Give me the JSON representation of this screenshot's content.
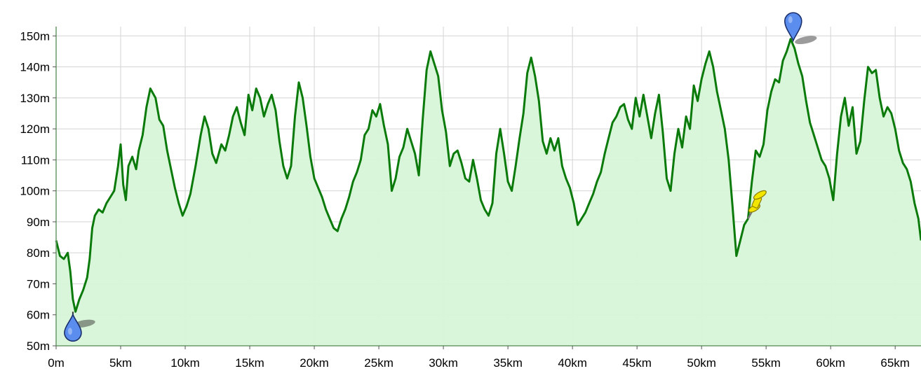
{
  "chart_data": {
    "type": "area",
    "xlabel": "",
    "ylabel": "",
    "xlim": [
      0,
      67
    ],
    "ylim": [
      50,
      153
    ],
    "grid": true,
    "x_ticks": [
      {
        "value": 0,
        "label": "0m"
      },
      {
        "value": 5,
        "label": "5km"
      },
      {
        "value": 10,
        "label": "10km"
      },
      {
        "value": 15,
        "label": "15km"
      },
      {
        "value": 20,
        "label": "20km"
      },
      {
        "value": 25,
        "label": "25km"
      },
      {
        "value": 30,
        "label": "30km"
      },
      {
        "value": 35,
        "label": "35km"
      },
      {
        "value": 40,
        "label": "40km"
      },
      {
        "value": 45,
        "label": "45km"
      },
      {
        "value": 50,
        "label": "50km"
      },
      {
        "value": 55,
        "label": "55km"
      },
      {
        "value": 60,
        "label": "60km"
      },
      {
        "value": 65,
        "label": "65km"
      }
    ],
    "y_ticks": [
      {
        "value": 50,
        "label": "50m"
      },
      {
        "value": 60,
        "label": "60m"
      },
      {
        "value": 70,
        "label": "70m"
      },
      {
        "value": 80,
        "label": "80m"
      },
      {
        "value": 90,
        "label": "90m"
      },
      {
        "value": 100,
        "label": "100m"
      },
      {
        "value": 110,
        "label": "110m"
      },
      {
        "value": 120,
        "label": "120m"
      },
      {
        "value": 130,
        "label": "130m"
      },
      {
        "value": 140,
        "label": "140m"
      },
      {
        "value": 150,
        "label": "150m"
      }
    ],
    "series": [
      {
        "color": "#0a7a0a",
        "fill": "#d8f5d8",
        "points": [
          [
            0,
            84
          ],
          [
            0.3,
            79
          ],
          [
            0.6,
            78
          ],
          [
            0.9,
            80
          ],
          [
            1.1,
            74
          ],
          [
            1.3,
            65
          ],
          [
            1.5,
            61
          ],
          [
            1.8,
            65
          ],
          [
            2.1,
            68
          ],
          [
            2.4,
            72
          ],
          [
            2.6,
            78
          ],
          [
            2.8,
            88
          ],
          [
            3.0,
            92
          ],
          [
            3.3,
            94
          ],
          [
            3.6,
            93
          ],
          [
            3.9,
            96
          ],
          [
            4.2,
            98
          ],
          [
            4.5,
            100
          ],
          [
            4.8,
            108
          ],
          [
            5.0,
            115
          ],
          [
            5.2,
            102
          ],
          [
            5.4,
            97
          ],
          [
            5.6,
            108
          ],
          [
            5.9,
            111
          ],
          [
            6.2,
            107
          ],
          [
            6.4,
            113
          ],
          [
            6.7,
            118
          ],
          [
            7.0,
            127
          ],
          [
            7.3,
            133
          ],
          [
            7.7,
            130
          ],
          [
            8.0,
            123
          ],
          [
            8.3,
            121
          ],
          [
            8.6,
            113
          ],
          [
            8.9,
            107
          ],
          [
            9.2,
            101
          ],
          [
            9.5,
            96
          ],
          [
            9.8,
            92
          ],
          [
            10.1,
            95
          ],
          [
            10.4,
            99
          ],
          [
            10.8,
            108
          ],
          [
            11.2,
            118
          ],
          [
            11.5,
            124
          ],
          [
            11.8,
            120
          ],
          [
            12.1,
            112
          ],
          [
            12.4,
            109
          ],
          [
            12.8,
            115
          ],
          [
            13.1,
            113
          ],
          [
            13.4,
            118
          ],
          [
            13.7,
            124
          ],
          [
            14.0,
            127
          ],
          [
            14.3,
            122
          ],
          [
            14.6,
            118
          ],
          [
            14.9,
            131
          ],
          [
            15.2,
            126
          ],
          [
            15.5,
            133
          ],
          [
            15.8,
            130
          ],
          [
            16.1,
            124
          ],
          [
            16.4,
            128
          ],
          [
            16.7,
            131
          ],
          [
            17.0,
            126
          ],
          [
            17.3,
            116
          ],
          [
            17.6,
            108
          ],
          [
            17.9,
            104
          ],
          [
            18.2,
            108
          ],
          [
            18.5,
            124
          ],
          [
            18.8,
            135
          ],
          [
            19.1,
            130
          ],
          [
            19.4,
            121
          ],
          [
            19.7,
            111
          ],
          [
            20.0,
            104
          ],
          [
            20.3,
            101
          ],
          [
            20.6,
            98
          ],
          [
            20.9,
            94
          ],
          [
            21.2,
            91
          ],
          [
            21.5,
            88
          ],
          [
            21.8,
            87
          ],
          [
            22.1,
            91
          ],
          [
            22.4,
            94
          ],
          [
            22.7,
            98
          ],
          [
            23.0,
            103
          ],
          [
            23.3,
            106
          ],
          [
            23.6,
            110
          ],
          [
            23.9,
            118
          ],
          [
            24.2,
            120
          ],
          [
            24.5,
            126
          ],
          [
            24.8,
            124
          ],
          [
            25.1,
            128
          ],
          [
            25.4,
            121
          ],
          [
            25.7,
            115
          ],
          [
            26.0,
            100
          ],
          [
            26.3,
            104
          ],
          [
            26.6,
            111
          ],
          [
            26.9,
            114
          ],
          [
            27.2,
            120
          ],
          [
            27.5,
            116
          ],
          [
            27.8,
            112
          ],
          [
            28.1,
            105
          ],
          [
            28.4,
            123
          ],
          [
            28.7,
            139
          ],
          [
            29.0,
            145
          ],
          [
            29.3,
            141
          ],
          [
            29.6,
            137
          ],
          [
            29.9,
            126
          ],
          [
            30.2,
            119
          ],
          [
            30.5,
            108
          ],
          [
            30.8,
            112
          ],
          [
            31.1,
            113
          ],
          [
            31.4,
            109
          ],
          [
            31.7,
            104
          ],
          [
            32.0,
            103
          ],
          [
            32.3,
            110
          ],
          [
            32.6,
            104
          ],
          [
            32.9,
            97
          ],
          [
            33.2,
            94
          ],
          [
            33.5,
            92
          ],
          [
            33.8,
            96
          ],
          [
            34.1,
            112
          ],
          [
            34.4,
            120
          ],
          [
            34.7,
            112
          ],
          [
            35.0,
            103
          ],
          [
            35.3,
            100
          ],
          [
            35.6,
            108
          ],
          [
            35.9,
            117
          ],
          [
            36.2,
            125
          ],
          [
            36.5,
            138
          ],
          [
            36.8,
            143
          ],
          [
            37.1,
            137
          ],
          [
            37.4,
            129
          ],
          [
            37.7,
            116
          ],
          [
            38.0,
            112
          ],
          [
            38.3,
            117
          ],
          [
            38.6,
            113
          ],
          [
            38.9,
            117
          ],
          [
            39.2,
            108
          ],
          [
            39.5,
            104
          ],
          [
            39.8,
            101
          ],
          [
            40.1,
            96
          ],
          [
            40.4,
            89
          ],
          [
            40.7,
            91
          ],
          [
            41.0,
            93
          ],
          [
            41.3,
            96
          ],
          [
            41.6,
            99
          ],
          [
            41.9,
            103
          ],
          [
            42.2,
            106
          ],
          [
            42.5,
            112
          ],
          [
            42.8,
            117
          ],
          [
            43.1,
            122
          ],
          [
            43.4,
            124
          ],
          [
            43.7,
            127
          ],
          [
            44.0,
            128
          ],
          [
            44.3,
            123
          ],
          [
            44.6,
            120
          ],
          [
            44.9,
            130
          ],
          [
            45.2,
            124
          ],
          [
            45.5,
            131
          ],
          [
            45.8,
            124
          ],
          [
            46.1,
            117
          ],
          [
            46.4,
            125
          ],
          [
            46.7,
            131
          ],
          [
            47.0,
            119
          ],
          [
            47.3,
            104
          ],
          [
            47.6,
            100
          ],
          [
            47.9,
            112
          ],
          [
            48.2,
            120
          ],
          [
            48.5,
            114
          ],
          [
            48.8,
            124
          ],
          [
            49.1,
            120
          ],
          [
            49.4,
            134
          ],
          [
            49.7,
            129
          ],
          [
            50.0,
            136
          ],
          [
            50.3,
            141
          ],
          [
            50.6,
            145
          ],
          [
            50.9,
            140
          ],
          [
            51.2,
            132
          ],
          [
            51.5,
            126
          ],
          [
            51.8,
            120
          ],
          [
            52.1,
            110
          ],
          [
            52.4,
            95
          ],
          [
            52.7,
            79
          ],
          [
            53.0,
            84
          ],
          [
            53.3,
            89
          ],
          [
            53.6,
            91
          ],
          [
            53.9,
            103
          ],
          [
            54.2,
            113
          ],
          [
            54.5,
            111
          ],
          [
            54.8,
            115
          ],
          [
            55.1,
            126
          ],
          [
            55.4,
            132
          ],
          [
            55.7,
            136
          ],
          [
            56.0,
            135
          ],
          [
            56.3,
            142
          ],
          [
            56.6,
            145
          ],
          [
            56.9,
            149
          ],
          [
            57.2,
            146
          ],
          [
            57.5,
            141
          ],
          [
            57.8,
            137
          ],
          [
            58.1,
            129
          ],
          [
            58.4,
            122
          ],
          [
            58.7,
            118
          ],
          [
            59.0,
            114
          ],
          [
            59.3,
            110
          ],
          [
            59.6,
            108
          ],
          [
            59.9,
            104
          ],
          [
            60.2,
            97
          ],
          [
            60.5,
            112
          ],
          [
            60.8,
            124
          ],
          [
            61.1,
            130
          ],
          [
            61.4,
            121
          ],
          [
            61.7,
            127
          ],
          [
            62.0,
            112
          ],
          [
            62.3,
            116
          ],
          [
            62.6,
            129
          ],
          [
            62.9,
            140
          ],
          [
            63.2,
            138
          ],
          [
            63.5,
            139
          ],
          [
            63.8,
            130
          ],
          [
            64.1,
            124
          ],
          [
            64.4,
            127
          ],
          [
            64.7,
            125
          ],
          [
            65.0,
            120
          ],
          [
            65.3,
            113
          ],
          [
            65.6,
            109
          ],
          [
            65.9,
            107
          ],
          [
            66.2,
            103
          ],
          [
            66.5,
            96
          ],
          [
            66.8,
            91
          ],
          [
            67.0,
            84
          ]
        ]
      }
    ],
    "markers": [
      {
        "x": 1.3,
        "y": 61,
        "icon": "blue-pin-icon",
        "color": "#5b8def",
        "anchor": "above",
        "kind": "drop"
      },
      {
        "x": 57.1,
        "y": 148,
        "icon": "blue-pin-icon",
        "color": "#5b8def",
        "anchor": "below",
        "kind": "pin"
      },
      {
        "x": 53.6,
        "y": 91,
        "icon": "yellow-pushpin-icon",
        "color": "#f2e600",
        "anchor": "pushpin",
        "kind": "pushpin"
      }
    ]
  }
}
